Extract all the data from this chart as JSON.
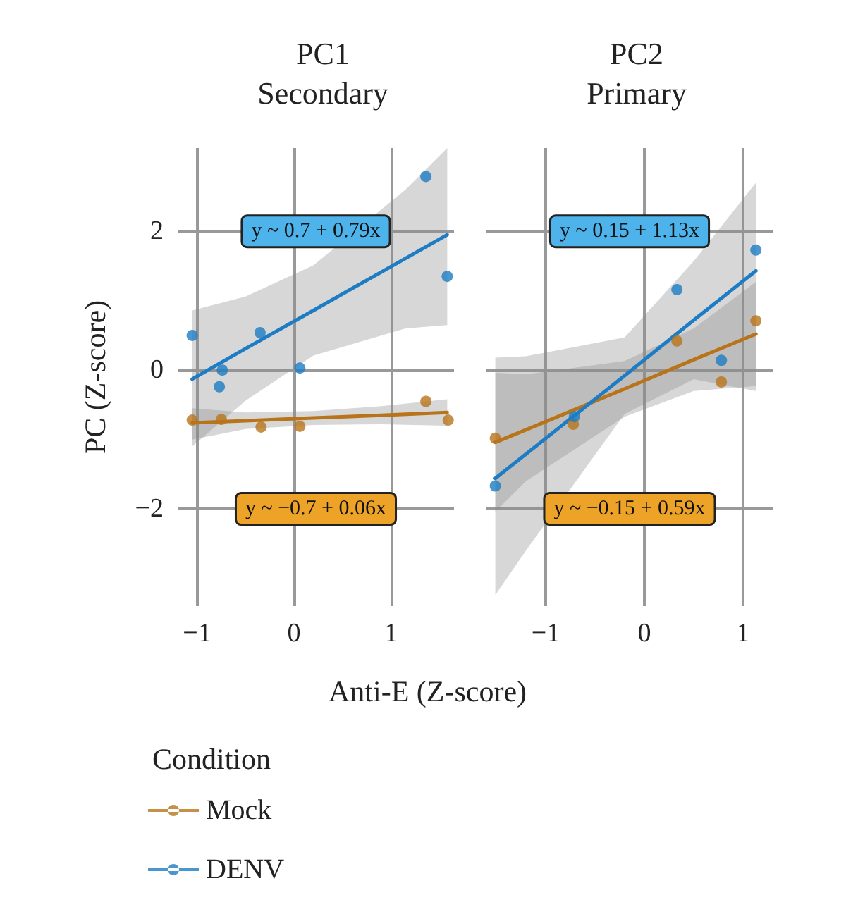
{
  "chart_data": [
    {
      "type": "scatter",
      "title": "PC1",
      "subtitle": "Secondary",
      "xlabel": "Anti-E (Z-score)",
      "ylabel": "PC (Z-score)",
      "legend_title": "Condition",
      "legend": "bottom",
      "grid": true,
      "marker": "circle",
      "line_style": "solid",
      "xlim": [
        -1.2,
        1.65
      ],
      "ylim": [
        -3.4,
        3.2
      ],
      "xticks": [
        -1,
        0,
        1
      ],
      "yticks": [
        -2,
        0,
        2
      ],
      "annotations": [
        "y ~ 0.7 + 0.79x",
        "y ~ −0.7 + 0.06x"
      ],
      "series": [
        {
          "name": "Mock",
          "color": "#b8741a",
          "x": [
            -1.05,
            -0.75,
            -0.34,
            0.06,
            1.36,
            1.59
          ],
          "values": [
            -0.72,
            -0.71,
            -0.82,
            -0.81,
            -0.45,
            -0.72
          ]
        },
        {
          "name": "DENV",
          "color": "#1d7cc3",
          "x": [
            -1.05,
            -0.74,
            -0.77,
            -0.35,
            0.06,
            1.36,
            1.58
          ],
          "values": [
            0.5,
            0,
            -0.24,
            0.54,
            0.03,
            2.79,
            1.35
          ]
        },
        {
          "type": "line",
          "marker": "none",
          "color": "#b8741a",
          "x": [
            -1.05,
            -0.5,
            0.2,
            0.9,
            1.58
          ],
          "values": [
            -0.76,
            -0.73,
            -0.69,
            -0.65,
            -0.61
          ],
          "lower": [
            -1.0,
            -0.85,
            -0.79,
            -0.78,
            -0.8
          ],
          "upper": [
            -0.55,
            -0.61,
            -0.59,
            -0.52,
            -0.42
          ]
        },
        {
          "type": "line",
          "marker": "none",
          "color": "#1d7cc3",
          "x": [
            -1.05,
            -0.5,
            0.2,
            1.15,
            1.58
          ],
          "values": [
            -0.13,
            0.31,
            0.86,
            1.61,
            1.95
          ],
          "lower": [
            -1.1,
            -0.44,
            0.21,
            0.6,
            0.65
          ],
          "upper": [
            0.86,
            1.06,
            1.51,
            2.6,
            3.2
          ]
        }
      ]
    },
    {
      "type": "scatter",
      "title": "PC2",
      "subtitle": "Primary",
      "grid": true,
      "marker": "circle",
      "line_style": "solid",
      "tick_labels": "x",
      "xlim": [
        -1.6,
        1.3
      ],
      "ylim": [
        -3.4,
        3.2
      ],
      "xticks": [
        -1,
        0,
        1
      ],
      "yticks": [
        -2,
        0,
        2
      ],
      "annotations": [
        "y ~ 0.15 + 1.13x",
        "y ~ −0.15 + 0.59x"
      ],
      "series": [
        {
          "color": "#b8741a",
          "x": [
            -1.51,
            -0.72,
            0.33,
            0.78,
            1.13
          ],
          "values": [
            -0.98,
            -0.78,
            0.42,
            -0.17,
            0.71
          ]
        },
        {
          "color": "#1d7cc3",
          "x": [
            -1.51,
            -0.71,
            0.33,
            0.78,
            1.13
          ],
          "values": [
            -1.67,
            -0.67,
            1.16,
            0.14,
            1.73
          ]
        },
        {
          "type": "line",
          "marker": "none",
          "color": "#b8741a",
          "x": [
            -1.51,
            -1.2,
            -0.2,
            0.5,
            1.13
          ],
          "values": [
            -1.04,
            -0.86,
            -0.27,
            0.15,
            0.52
          ],
          "lower": [
            -2.04,
            -1.6,
            -0.67,
            -0.3,
            -0.23
          ],
          "upper": [
            -0.04,
            -0.06,
            0.13,
            0.6,
            1.27
          ]
        },
        {
          "type": "line",
          "marker": "none",
          "color": "#1d7cc3",
          "x": [
            -1.51,
            -1.2,
            -0.2,
            0.5,
            1.13
          ],
          "values": [
            -1.56,
            -1.21,
            -0.08,
            0.72,
            1.43
          ],
          "lower": [
            -3.24,
            -2.6,
            -0.63,
            -0.13,
            -0.3
          ],
          "upper": [
            0.18,
            0.2,
            0.47,
            1.57,
            2.7
          ]
        }
      ]
    }
  ]
}
